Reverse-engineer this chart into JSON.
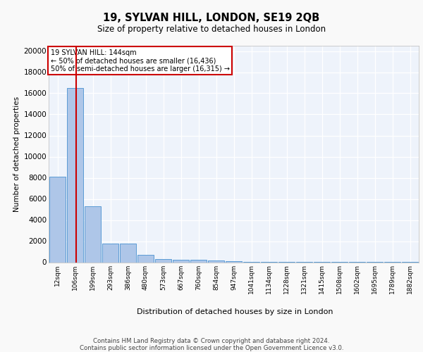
{
  "title1": "19, SYLVAN HILL, LONDON, SE19 2QB",
  "title2": "Size of property relative to detached houses in London",
  "xlabel": "Distribution of detached houses by size in London",
  "ylabel": "Number of detached properties",
  "bar_labels": [
    "12sqm",
    "106sqm",
    "199sqm",
    "293sqm",
    "386sqm",
    "480sqm",
    "573sqm",
    "667sqm",
    "760sqm",
    "854sqm",
    "947sqm",
    "1041sqm",
    "1134sqm",
    "1228sqm",
    "1321sqm",
    "1415sqm",
    "1508sqm",
    "1602sqm",
    "1695sqm",
    "1789sqm",
    "1882sqm"
  ],
  "bar_values": [
    8100,
    16500,
    5300,
    1750,
    1750,
    700,
    300,
    250,
    230,
    200,
    130,
    50,
    40,
    30,
    20,
    15,
    10,
    8,
    6,
    4,
    3
  ],
  "bar_color": "#aec6e8",
  "bar_edge_color": "#5b9bd5",
  "background_color": "#eef3fb",
  "grid_color": "#ffffff",
  "red_line_color": "#cc0000",
  "annotation_title": "19 SYLVAN HILL: 144sqm",
  "annotation_line1": "← 50% of detached houses are smaller (16,436)",
  "annotation_line2": "50% of semi-detached houses are larger (16,315) →",
  "annotation_box_color": "#ffffff",
  "annotation_box_edge": "#cc0000",
  "ylim": [
    0,
    20500
  ],
  "yticks": [
    0,
    2000,
    4000,
    6000,
    8000,
    10000,
    12000,
    14000,
    16000,
    18000,
    20000
  ],
  "footer1": "Contains HM Land Registry data © Crown copyright and database right 2024.",
  "footer2": "Contains public sector information licensed under the Open Government Licence v3.0.",
  "fig_bg": "#f9f9f9"
}
